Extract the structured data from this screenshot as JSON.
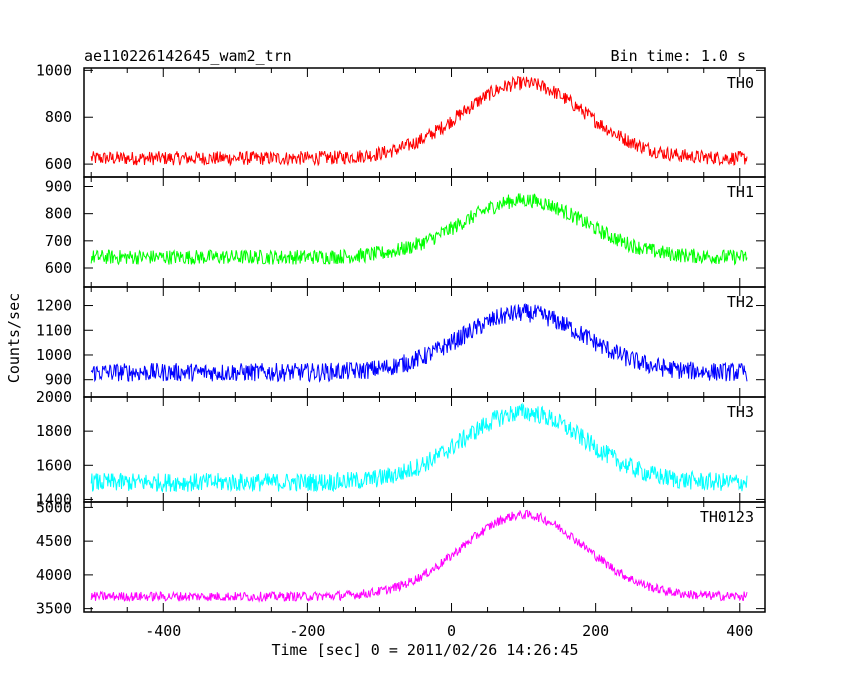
{
  "chart_data": {
    "type": "line",
    "title": "ae110226142645_wam2_trn",
    "subtitle": "Bin time: 1.0 s",
    "xlabel": "Time [sec] 0 = 2011/02/26 14:26:45",
    "ylabel": "Counts/sec",
    "xlim": [
      -510,
      435
    ],
    "xticks": [
      -400,
      -200,
      0,
      200,
      400
    ],
    "grid": false,
    "peak_time": 100,
    "panels": [
      {
        "name": "TH0",
        "color": "#ff0000",
        "ylim": [
          545,
          1010
        ],
        "yticks": [
          600,
          800,
          1000
        ],
        "baseline": 625,
        "peak": 945,
        "noise": 60
      },
      {
        "name": "TH1",
        "color": "#00ff00",
        "ylim": [
          530,
          935
        ],
        "yticks": [
          600,
          700,
          800,
          900
        ],
        "baseline": 640,
        "peak": 850,
        "noise": 55
      },
      {
        "name": "TH2",
        "color": "#0000ff",
        "ylim": [
          830,
          1275
        ],
        "yticks": [
          900,
          1000,
          1100,
          1200
        ],
        "baseline": 930,
        "peak": 1170,
        "noise": 75
      },
      {
        "name": "TH3",
        "color": "#00ffff",
        "ylim": [
          1385,
          2000
        ],
        "yticks": [
          1400,
          1600,
          1800,
          2000
        ],
        "baseline": 1500,
        "peak": 1910,
        "noise": 110
      },
      {
        "name": "TH0123",
        "color": "#ff00ff",
        "ylim": [
          3450,
          5080
        ],
        "yticks": [
          3500,
          4000,
          4500,
          5000
        ],
        "baseline": 3680,
        "peak": 4890,
        "noise": 140
      }
    ]
  }
}
